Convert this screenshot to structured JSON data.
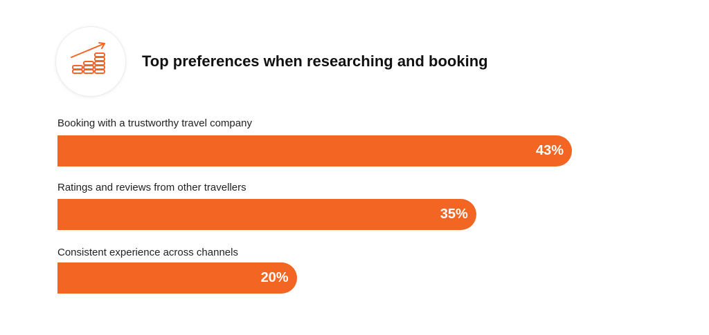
{
  "title": "Top preferences when researching and booking",
  "header_icon": "growth-chart-coins-icon",
  "accent_color": "#f26522",
  "chart_data": {
    "type": "bar",
    "orientation": "horizontal",
    "title": "Top preferences when researching and booking",
    "categories": [
      "Booking with a trustworthy travel company",
      "Ratings and reviews from other travellers",
      "Consistent experience across channels"
    ],
    "values": [
      43,
      35,
      20
    ],
    "value_labels": [
      "43%",
      "35%",
      "20%"
    ],
    "unit": "%",
    "bar_color": "#f26522",
    "xlim": [
      0,
      100
    ],
    "grid": false,
    "legend": "none"
  }
}
